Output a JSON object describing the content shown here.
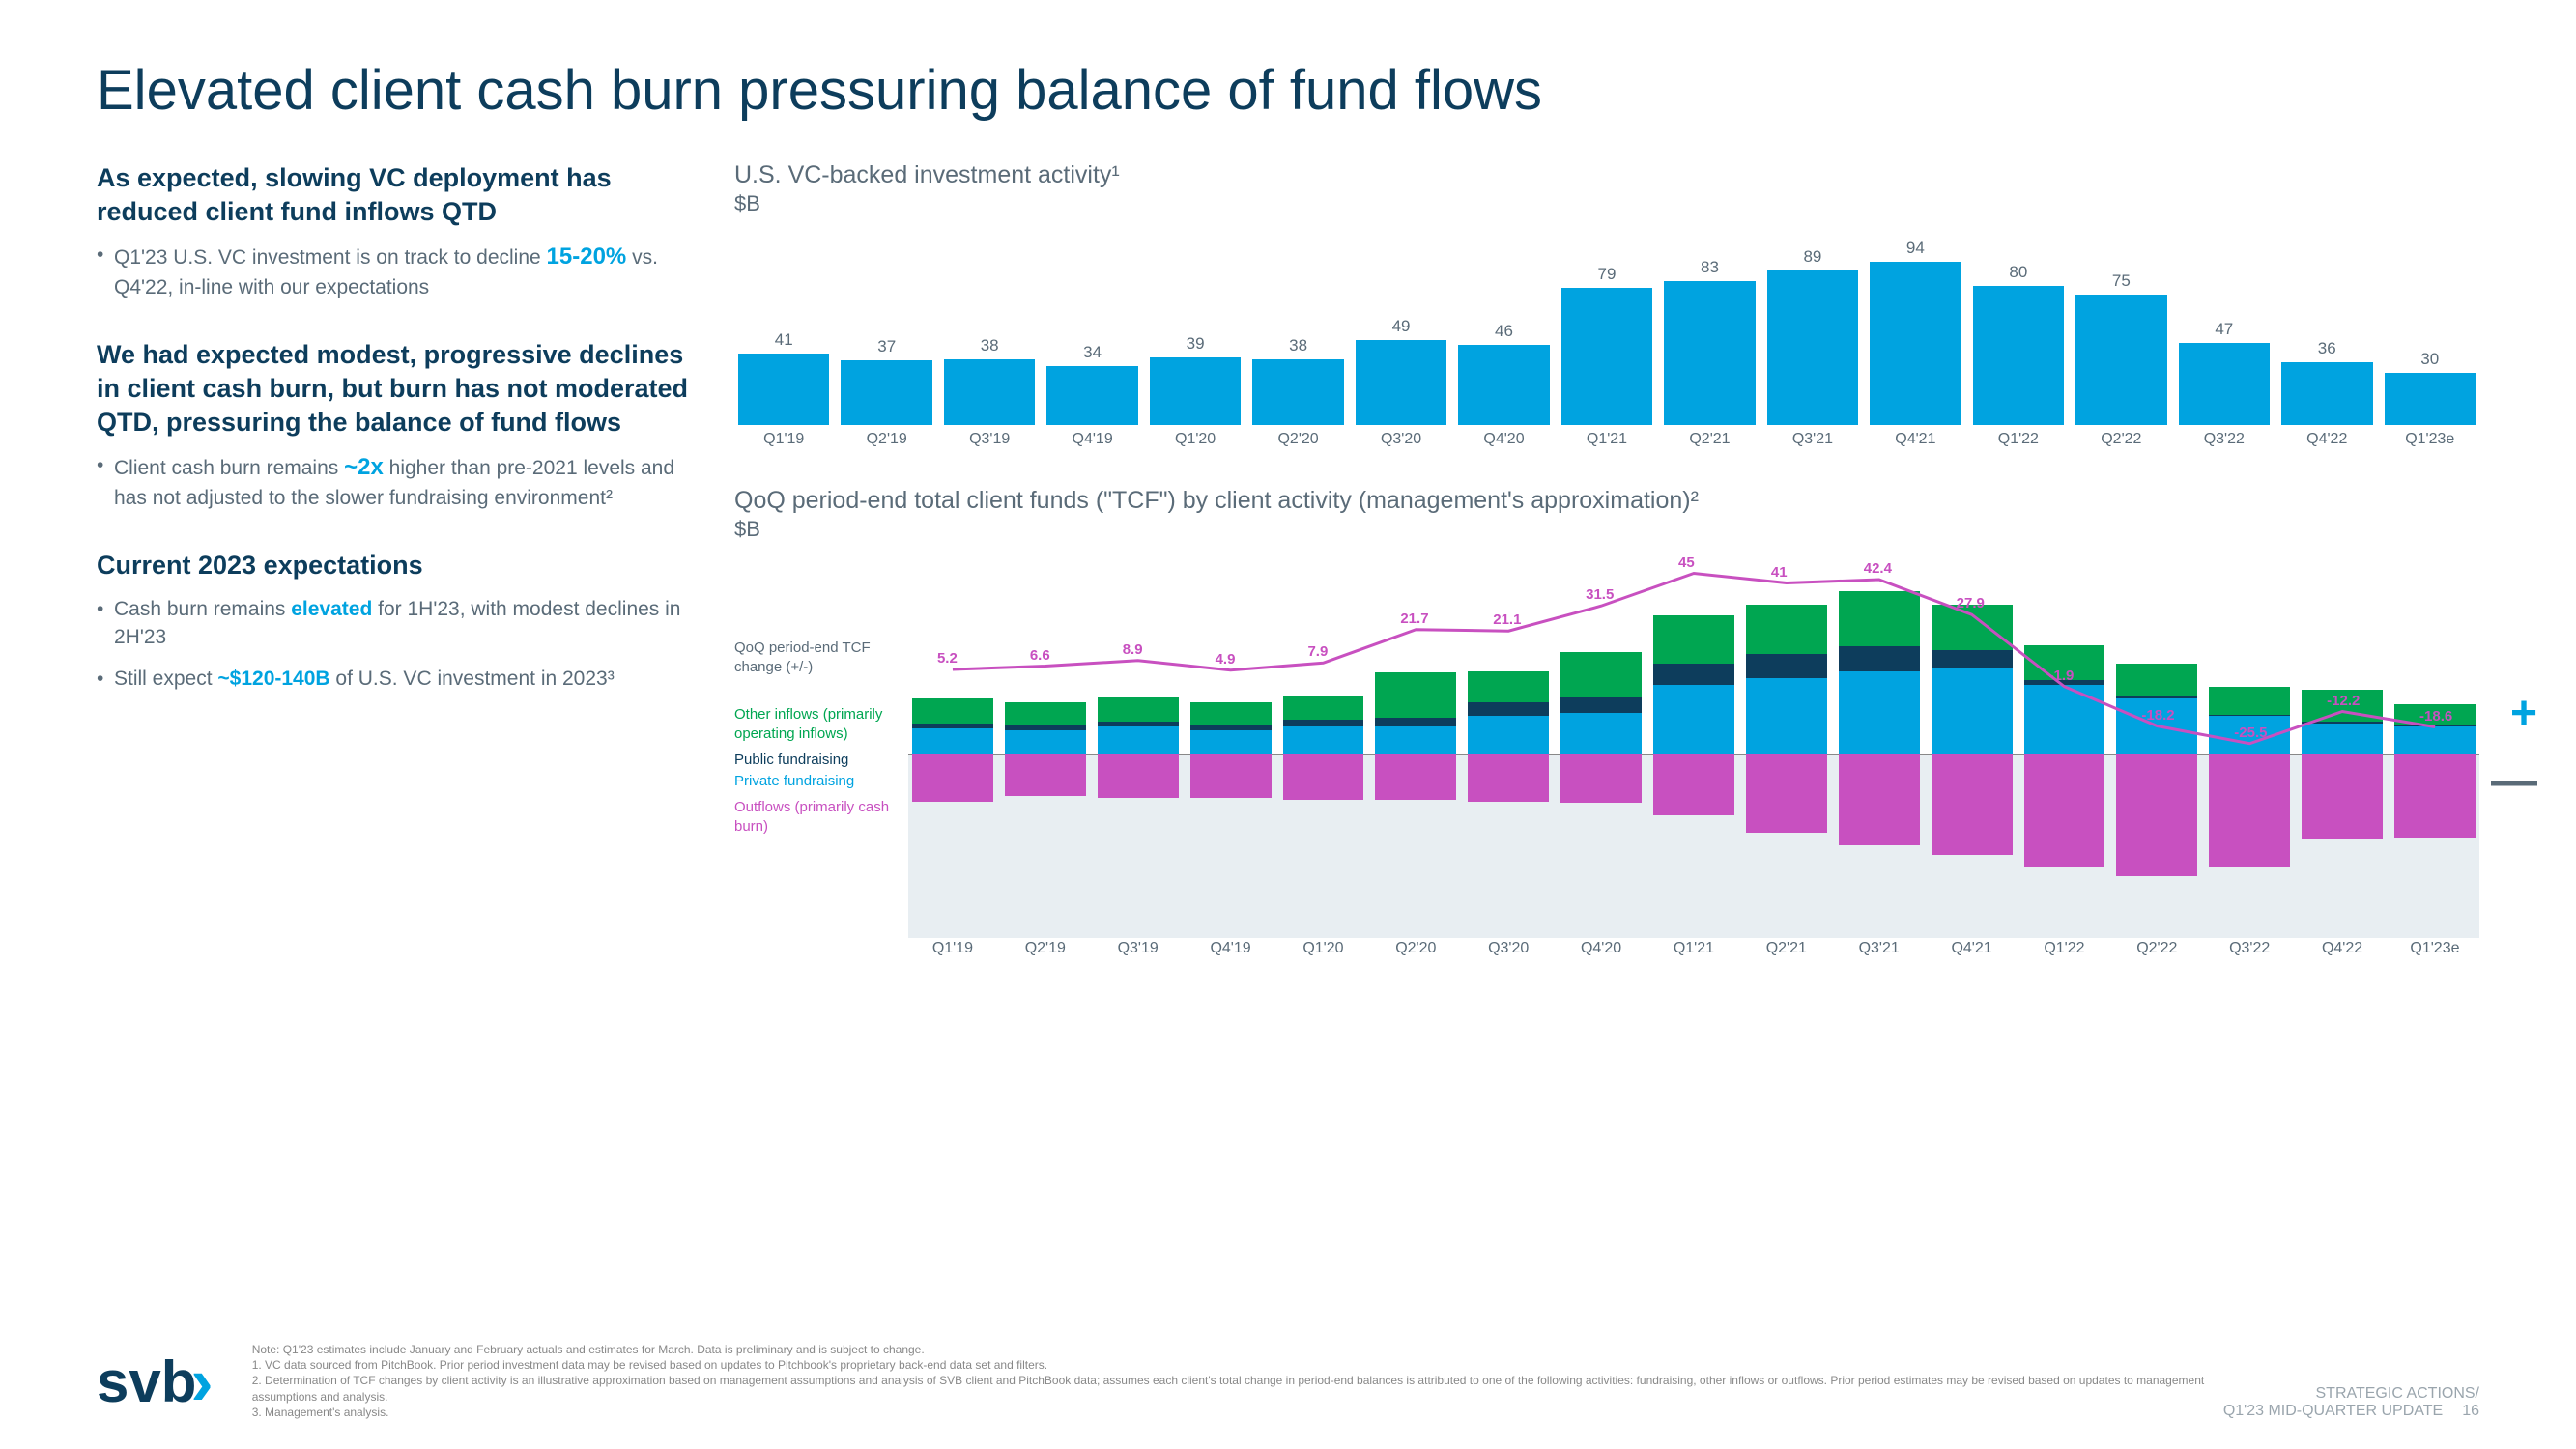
{
  "title": "Elevated client cash burn pressuring balance of fund flows",
  "left": {
    "h1": "As expected, slowing VC deployment has reduced client fund inflows QTD",
    "b1a": "Q1'23 U.S. VC investment is on track to decline ",
    "b1h": "15-20%",
    "b1b": " vs. Q4'22, in-line with our expectations",
    "h2": "We had expected modest, progressive declines in client cash burn, but burn has not moderated QTD, pressuring the balance of fund flows",
    "b2a": "Client cash burn remains ",
    "b2h": "~2x",
    "b2b": " higher than pre-2021 levels and has not adjusted to the slower fundraising environment²",
    "h3": "Current 2023 expectations",
    "b3a": "Cash burn remains ",
    "b3h": "elevated",
    "b3b": " for 1H'23, with modest declines in 2H'23",
    "b4a": "Still expect ",
    "b4h": "~$120-140B",
    "b4b": " of U.S. VC investment in 2023³"
  },
  "chart1": {
    "title": "U.S. VC-backed investment activity¹",
    "unit": "$B",
    "categories": [
      "Q1'19",
      "Q2'19",
      "Q3'19",
      "Q4'19",
      "Q1'20",
      "Q2'20",
      "Q3'20",
      "Q4'20",
      "Q1'21",
      "Q2'21",
      "Q3'21",
      "Q4'21",
      "Q1'22",
      "Q2'22",
      "Q3'22",
      "Q4'22",
      "Q1'23e"
    ],
    "values": [
      41,
      37,
      38,
      34,
      39,
      38,
      49,
      46,
      79,
      83,
      89,
      94,
      80,
      75,
      47,
      36,
      30
    ],
    "ymax": 100,
    "bar_color": "#00a3e0",
    "label_color": "#5a6b78"
  },
  "chart2": {
    "title": "QoQ period-end total client funds (\"TCF\") by client activity (management's approximation)²",
    "unit": "$B",
    "categories": [
      "Q1'19",
      "Q2'19",
      "Q3'19",
      "Q4'19",
      "Q1'20",
      "Q2'20",
      "Q3'20",
      "Q4'20",
      "Q1'21",
      "Q2'21",
      "Q3'21",
      "Q4'21",
      "Q1'22",
      "Q2'22",
      "Q3'22",
      "Q4'22",
      "Q1'23e"
    ],
    "line_values": [
      5.2,
      6.6,
      8.9,
      4.9,
      7.9,
      21.7,
      21.1,
      31.5,
      45.0,
      41.0,
      42.4,
      27.9,
      -1.9,
      -18.2,
      -25.5,
      -12.2,
      -18.6
    ],
    "line_color": "#c850c0",
    "legend": {
      "qoq": "QoQ period-end TCF change (+/-)",
      "other": "Other inflows (primarily operating inflows)",
      "public": "Public fundraising",
      "private": "Private fundraising",
      "outflow": "Outflows (primarily cash burn)"
    },
    "bars": [
      {
        "priv": 15,
        "pub": 3,
        "oth": 14,
        "out": 27
      },
      {
        "priv": 14,
        "pub": 3,
        "oth": 13,
        "out": 24
      },
      {
        "priv": 16,
        "pub": 3,
        "oth": 14,
        "out": 25
      },
      {
        "priv": 14,
        "pub": 3,
        "oth": 13,
        "out": 25
      },
      {
        "priv": 16,
        "pub": 4,
        "oth": 14,
        "out": 26
      },
      {
        "priv": 16,
        "pub": 5,
        "oth": 26,
        "out": 26
      },
      {
        "priv": 22,
        "pub": 8,
        "oth": 18,
        "out": 27
      },
      {
        "priv": 24,
        "pub": 9,
        "oth": 26,
        "out": 28
      },
      {
        "priv": 40,
        "pub": 12,
        "oth": 28,
        "out": 35
      },
      {
        "priv": 44,
        "pub": 14,
        "oth": 28,
        "out": 45
      },
      {
        "priv": 48,
        "pub": 14,
        "oth": 32,
        "out": 52
      },
      {
        "priv": 50,
        "pub": 10,
        "oth": 26,
        "out": 58
      },
      {
        "priv": 40,
        "pub": 3,
        "oth": 20,
        "out": 65
      },
      {
        "priv": 32,
        "pub": 2,
        "oth": 18,
        "out": 70
      },
      {
        "priv": 22,
        "pub": 1,
        "oth": 16,
        "out": 65
      },
      {
        "priv": 18,
        "pub": 1,
        "oth": 18,
        "out": 49
      },
      {
        "priv": 16,
        "pub": 1,
        "oth": 12,
        "out": 48
      }
    ],
    "scale": 1.8,
    "colors": {
      "priv": "#00a3e0",
      "pub": "#0d3d5c",
      "oth": "#00a651",
      "out": "#c850c0"
    }
  },
  "footer": {
    "logo": "svb",
    "note0": "Note: Q1'23 estimates include January and February actuals and estimates for March. Data is preliminary and is subject to change.",
    "note1": "1. VC data sourced from PitchBook. Prior period investment data may be revised based on updates to Pitchbook's proprietary back-end data set and filters.",
    "note2": "2. Determination of TCF changes by client activity is an illustrative approximation based on management assumptions and analysis of SVB client and PitchBook data; assumes each client's total change in period-end balances is attributed to one of the following activities: fundraising, other inflows or outflows. Prior period estimates may be revised based on updates to management assumptions and analysis.",
    "note3": "3. Management's analysis.",
    "tagline1": "STRATEGIC ACTIONS/",
    "tagline2": "Q1'23 MID-QUARTER UPDATE",
    "page": "16"
  }
}
